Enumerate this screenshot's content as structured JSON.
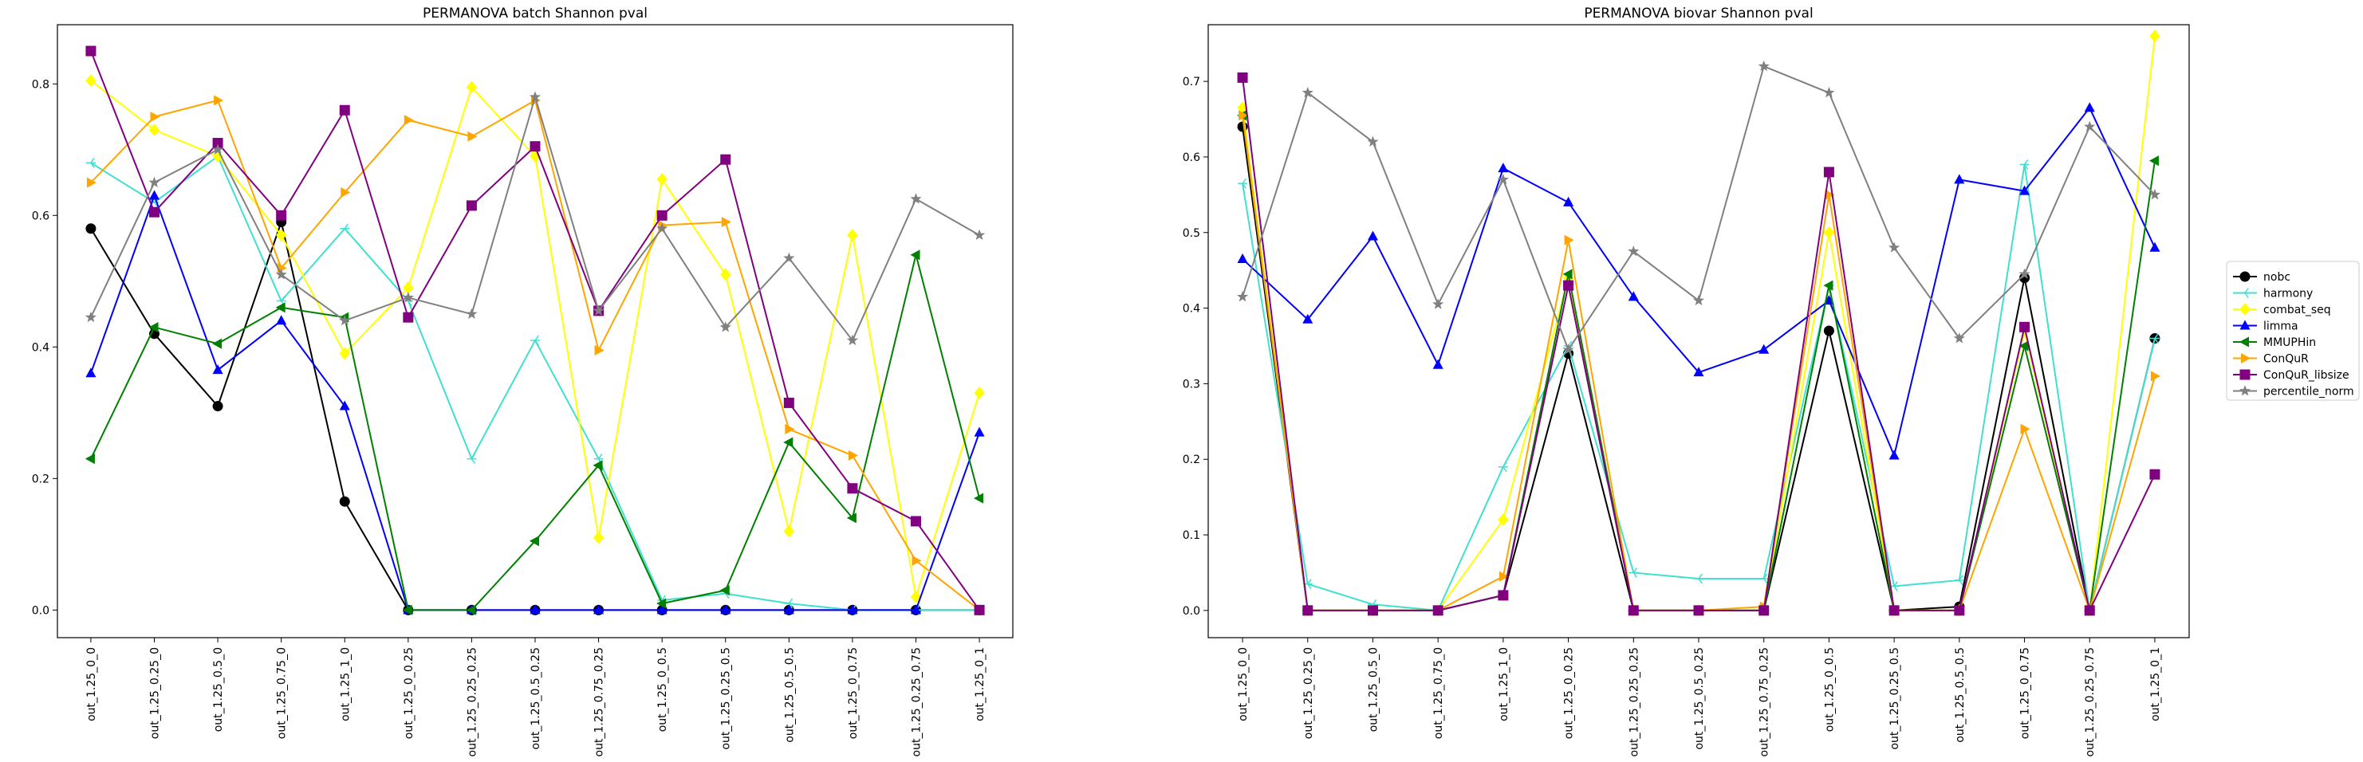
{
  "chart_data": [
    {
      "type": "line",
      "title": "PERMANOVA batch Shannon pval",
      "xlabel": "",
      "ylabel": "",
      "ylim": [
        -0.042,
        0.89
      ],
      "yticks": [
        0.0,
        0.2,
        0.4,
        0.6,
        0.8
      ],
      "grid": false,
      "categories": [
        "out_1.25_0_0",
        "out_1.25_0.25_0",
        "out_1.25_0.5_0",
        "out_1.25_0.75_0",
        "out_1.25_1_0",
        "out_1.25_0_0.25",
        "out_1.25_0.25_0.25",
        "out_1.25_0.5_0.25",
        "out_1.25_0.75_0.25",
        "out_1.25_0_0.5",
        "out_1.25_0.25_0.5",
        "out_1.25_0.5_0.5",
        "out_1.25_0_0.75",
        "out_1.25_0.25_0.75",
        "out_1.25_0_1"
      ],
      "series": [
        {
          "name": "nobc",
          "color": "#000000",
          "marker": "circle",
          "values": [
            0.58,
            0.42,
            0.31,
            0.59,
            0.165,
            0.0,
            0.0,
            0.0,
            0.0,
            0.0,
            0.0,
            0.0,
            0.0,
            0.0,
            0.0
          ]
        },
        {
          "name": "harmony",
          "color": "#40e0d0",
          "marker": "tri_left",
          "values": [
            0.68,
            0.62,
            0.69,
            0.47,
            0.58,
            0.47,
            0.23,
            0.41,
            0.23,
            0.015,
            0.025,
            0.01,
            0.0,
            0.0,
            0.0
          ]
        },
        {
          "name": "combat_seq",
          "color": "#ffff00",
          "marker": "diamond",
          "values": [
            0.805,
            0.73,
            0.69,
            0.57,
            0.39,
            0.49,
            0.795,
            0.69,
            0.11,
            0.655,
            0.51,
            0.12,
            0.57,
            0.02,
            0.33
          ]
        },
        {
          "name": "limma",
          "color": "#0000ff",
          "marker": "triangle_up",
          "values": [
            0.36,
            0.63,
            0.365,
            0.44,
            0.31,
            0.0,
            0.0,
            0.0,
            0.0,
            0.0,
            0.0,
            0.0,
            0.0,
            0.0,
            0.27
          ]
        },
        {
          "name": "MMUPHin",
          "color": "#008000",
          "marker": "triangle_left",
          "values": [
            0.23,
            0.43,
            0.405,
            0.46,
            0.445,
            0.0,
            0.0,
            0.105,
            0.22,
            0.01,
            0.03,
            0.255,
            0.14,
            0.54,
            0.17
          ]
        },
        {
          "name": "ConQuR",
          "color": "#ffa500",
          "marker": "triangle_right",
          "values": [
            0.65,
            0.75,
            0.775,
            0.52,
            0.635,
            0.745,
            0.72,
            0.775,
            0.395,
            0.585,
            0.59,
            0.275,
            0.235,
            0.075,
            0.0
          ]
        },
        {
          "name": "ConQuR_libsize",
          "color": "#800080",
          "marker": "square",
          "values": [
            0.85,
            0.605,
            0.71,
            0.6,
            0.76,
            0.445,
            0.615,
            0.705,
            0.455,
            0.6,
            0.685,
            0.315,
            0.185,
            0.135,
            0.0
          ]
        },
        {
          "name": "percentile_norm",
          "color": "#808080",
          "marker": "star",
          "values": [
            0.445,
            0.65,
            0.7,
            0.51,
            0.44,
            0.475,
            0.45,
            0.78,
            0.455,
            0.58,
            0.43,
            0.535,
            0.41,
            0.625,
            0.57
          ]
        }
      ]
    },
    {
      "type": "line",
      "title": "PERMANOVA biovar Shannon pval",
      "xlabel": "",
      "ylabel": "",
      "ylim": [
        -0.036,
        0.775
      ],
      "yticks": [
        0.0,
        0.1,
        0.2,
        0.3,
        0.4,
        0.5,
        0.6,
        0.7
      ],
      "grid": false,
      "legend_position": "outside-right",
      "categories": [
        "out_1.25_0_0",
        "out_1.25_0.25_0",
        "out_1.25_0.5_0",
        "out_1.25_0.75_0",
        "out_1.25_1_0",
        "out_1.25_0_0.25",
        "out_1.25_0.25_0.25",
        "out_1.25_0.5_0.25",
        "out_1.25_0.75_0.25",
        "out_1.25_0_0.5",
        "out_1.25_0.25_0.5",
        "out_1.25_0.5_0.5",
        "out_1.25_0_0.75",
        "out_1.25_0.25_0.75",
        "out_1.25_0_1"
      ],
      "series": [
        {
          "name": "nobc",
          "color": "#000000",
          "marker": "circle",
          "values": [
            0.64,
            0.0,
            0.0,
            0.0,
            0.02,
            0.34,
            0.0,
            0.0,
            0.0,
            0.37,
            0.0,
            0.005,
            0.44,
            0.0,
            0.36
          ]
        },
        {
          "name": "harmony",
          "color": "#40e0d0",
          "marker": "tri_left",
          "values": [
            0.565,
            0.035,
            0.008,
            0.0,
            0.19,
            0.35,
            0.05,
            0.042,
            0.042,
            0.43,
            0.032,
            0.04,
            0.59,
            0.0,
            0.36
          ]
        },
        {
          "name": "combat_seq",
          "color": "#ffff00",
          "marker": "diamond",
          "values": [
            0.665,
            0.0,
            0.0,
            0.0,
            0.12,
            0.44,
            0.0,
            0.0,
            0.0,
            0.5,
            0.0,
            0.0,
            0.37,
            0.0,
            0.76
          ]
        },
        {
          "name": "limma",
          "color": "#0000ff",
          "marker": "triangle_up",
          "values": [
            0.465,
            0.385,
            0.495,
            0.325,
            0.585,
            0.54,
            0.415,
            0.315,
            0.345,
            0.41,
            0.205,
            0.57,
            0.555,
            0.665,
            0.48
          ]
        },
        {
          "name": "MMUPHin",
          "color": "#008000",
          "marker": "triangle_left",
          "values": [
            0.655,
            0.0,
            0.0,
            0.0,
            0.02,
            0.445,
            0.0,
            0.0,
            0.0,
            0.43,
            0.0,
            0.0,
            0.35,
            0.0,
            0.595
          ]
        },
        {
          "name": "ConQuR",
          "color": "#ffa500",
          "marker": "triangle_right",
          "values": [
            0.655,
            0.0,
            0.0,
            0.0,
            0.045,
            0.49,
            0.0,
            0.0,
            0.005,
            0.55,
            0.0,
            0.0,
            0.24,
            0.0,
            0.31
          ]
        },
        {
          "name": "ConQuR_libsize",
          "color": "#800080",
          "marker": "square",
          "values": [
            0.705,
            0.0,
            0.0,
            0.0,
            0.02,
            0.43,
            0.0,
            0.0,
            0.0,
            0.58,
            0.0,
            0.0,
            0.375,
            0.0,
            0.18
          ]
        },
        {
          "name": "percentile_norm",
          "color": "#808080",
          "marker": "star",
          "values": [
            0.415,
            0.685,
            0.62,
            0.405,
            0.57,
            0.345,
            0.475,
            0.41,
            0.72,
            0.685,
            0.48,
            0.36,
            0.445,
            0.64,
            0.55
          ]
        }
      ]
    }
  ]
}
